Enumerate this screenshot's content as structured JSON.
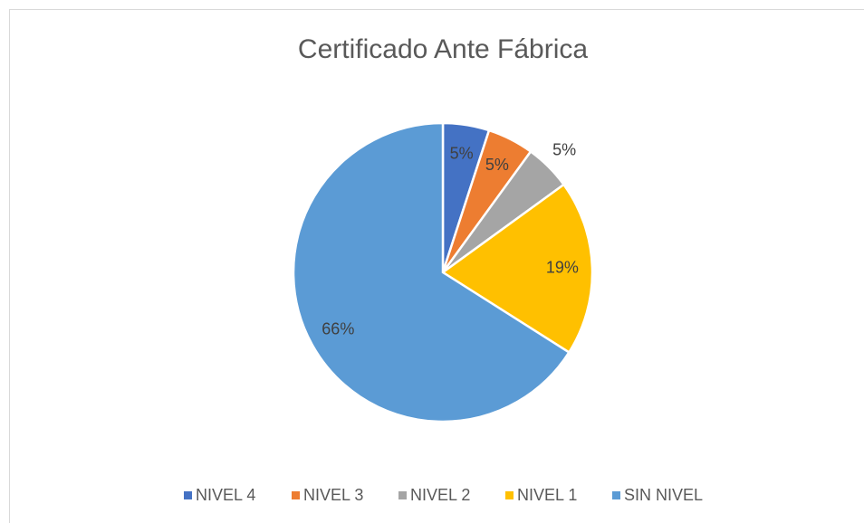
{
  "chart_data": {
    "type": "pie",
    "title": "Certificado Ante Fábrica",
    "categories": [
      "NIVEL 4",
      "NIVEL 3",
      "NIVEL 2",
      "NIVEL 1",
      "SIN NIVEL"
    ],
    "values": [
      5,
      5,
      5,
      19,
      66
    ],
    "value_labels": [
      "5%",
      "5%",
      "5%",
      "19%",
      "66%"
    ],
    "colors": [
      "#4472c4",
      "#ed7d31",
      "#a5a5a5",
      "#ffc000",
      "#5b9bd5"
    ],
    "legend": "bottom"
  }
}
